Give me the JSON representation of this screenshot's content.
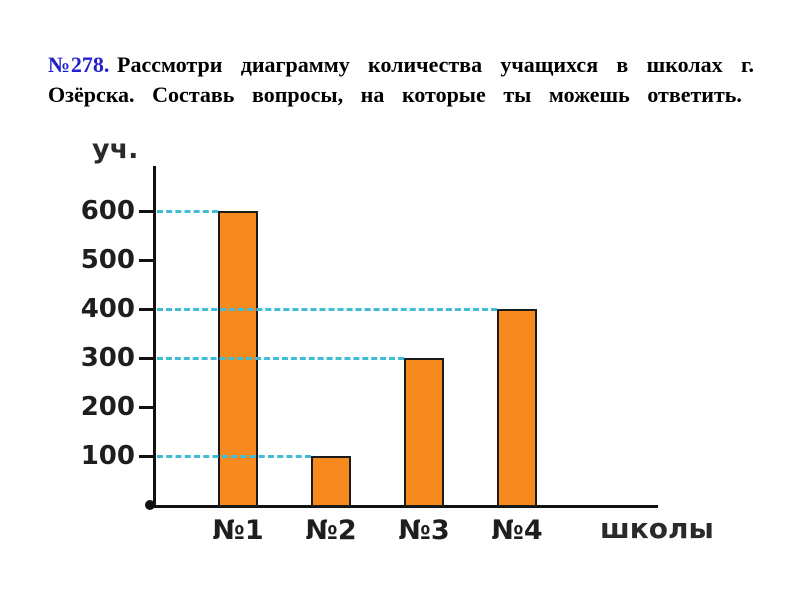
{
  "heading": {
    "number": "№278.",
    "text": "Рассмотри диаграмму количества учащихся в школах г. Озёрска. Составь вопросы, на которые ты можешь ответить."
  },
  "chart_data": {
    "type": "bar",
    "categories": [
      "№1",
      "№2",
      "№3",
      "№4"
    ],
    "values": [
      600,
      100,
      300,
      400
    ],
    "title": "",
    "xlabel": "школы",
    "ylabel": "уч.",
    "yticks": [
      100,
      200,
      300,
      400,
      500,
      600
    ],
    "ylim": [
      0,
      650
    ],
    "legend": "none",
    "grid": "dashed horizontal value lines from y-axis to each bar",
    "bar_color": "#F68A1E",
    "bar_border_color": "#1a1a1a",
    "gridline_color": "#40BCD4",
    "axis_color": "#111111",
    "heading_number_color": "#2222CC"
  }
}
